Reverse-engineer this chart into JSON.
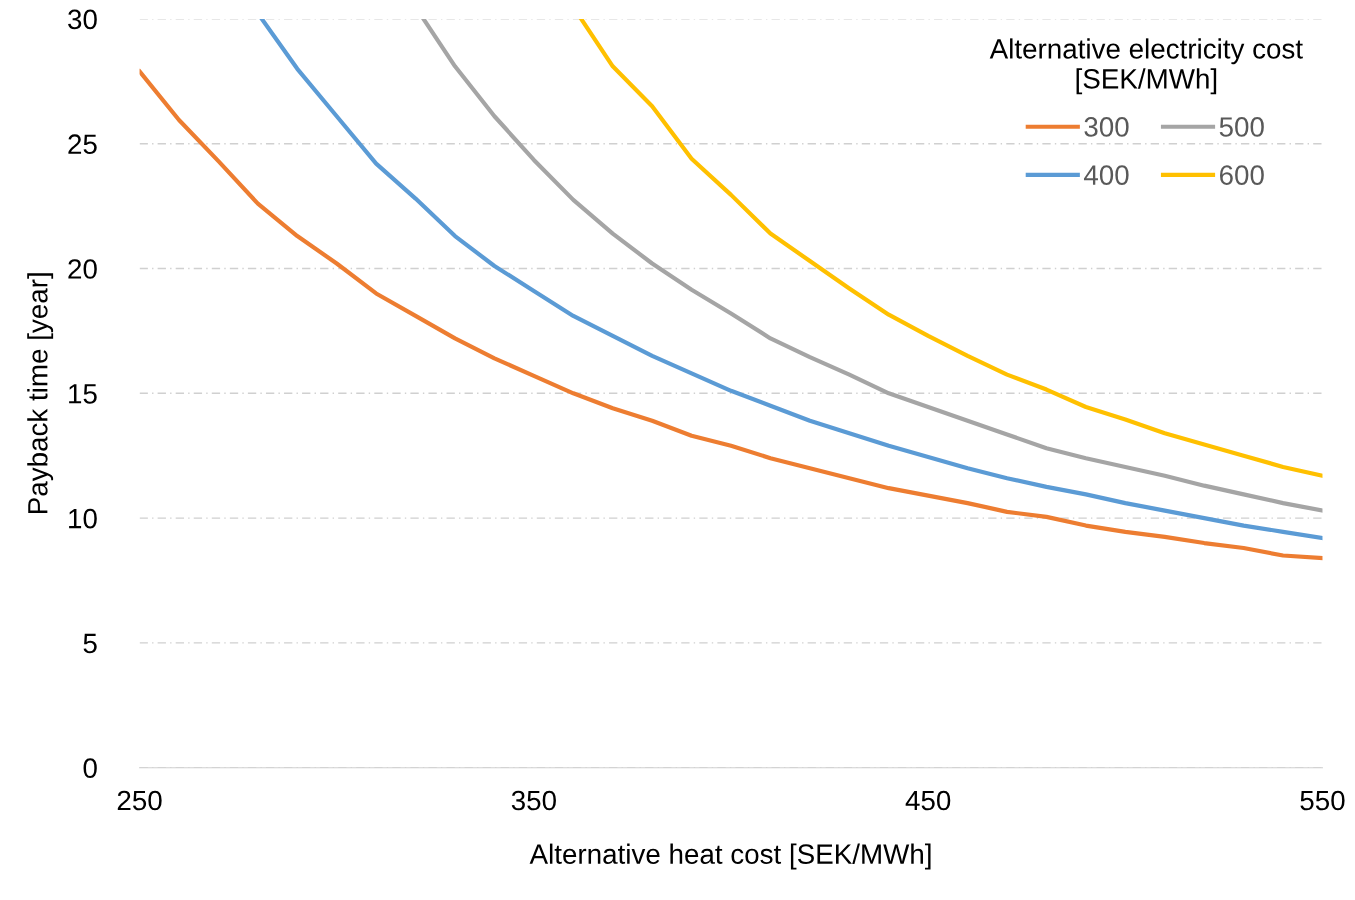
{
  "chart_data": {
    "type": "line",
    "xlabel": "Alternative heat cost [SEK/MWh]",
    "ylabel": "Payback time [year]",
    "legend_title": "Alternative electricity cost\n[SEK/MWh]",
    "legend": "top right",
    "grid": "y",
    "xlim": [
      250,
      550
    ],
    "xticks": [
      250,
      350,
      450,
      550
    ],
    "ylim": [
      0,
      30
    ],
    "yticks": [
      0,
      5,
      10,
      15,
      20,
      25,
      30
    ],
    "series": [
      {
        "name": "300",
        "color": "#ed7d31",
        "x": [
          250,
          260,
          270,
          280,
          290,
          300,
          310,
          320,
          330,
          340,
          350,
          360,
          370,
          380,
          390,
          400,
          410,
          420,
          430,
          440,
          450,
          460,
          470,
          480,
          490,
          500,
          510,
          520,
          530,
          540,
          550
        ],
        "values": [
          27.9,
          25.95,
          24.3,
          22.6,
          21.3,
          20.2,
          19.0,
          18.1,
          17.2,
          16.4,
          15.7,
          15.0,
          14.4,
          13.9,
          13.3,
          12.9,
          12.4,
          12.0,
          11.6,
          11.2,
          10.9,
          10.6,
          10.25,
          10.05,
          9.7,
          9.45,
          9.25,
          9.0,
          8.8,
          8.5,
          8.4
        ]
      },
      {
        "name": "400",
        "color": "#5b9bd5",
        "x": [
          281,
          290,
          300,
          310,
          320,
          330,
          340,
          350,
          360,
          370,
          380,
          390,
          400,
          410,
          420,
          430,
          440,
          450,
          460,
          470,
          480,
          490,
          500,
          510,
          520,
          530,
          540,
          550
        ],
        "values": [
          30,
          28.0,
          26.1,
          24.2,
          22.8,
          21.3,
          20.1,
          19.1,
          18.1,
          17.3,
          16.5,
          15.8,
          15.1,
          14.5,
          13.9,
          13.4,
          12.9,
          12.45,
          12.0,
          11.6,
          11.25,
          10.95,
          10.6,
          10.3,
          10.0,
          9.7,
          9.45,
          9.2
        ]
      },
      {
        "name": "500",
        "color": "#a5a5a5",
        "x": [
          322,
          330,
          340,
          350,
          360,
          370,
          380,
          390,
          400,
          410,
          420,
          430,
          440,
          450,
          460,
          470,
          480,
          490,
          500,
          510,
          520,
          530,
          540,
          550
        ],
        "values": [
          30,
          28.1,
          26.1,
          24.35,
          22.75,
          21.4,
          20.2,
          19.15,
          18.2,
          17.2,
          16.45,
          15.75,
          15.0,
          14.45,
          13.9,
          13.35,
          12.8,
          12.4,
          12.05,
          11.7,
          11.3,
          10.95,
          10.6,
          10.3
        ]
      },
      {
        "name": "600",
        "color": "#ffc000",
        "x": [
          362,
          370,
          380,
          390,
          400,
          410,
          420,
          430,
          440,
          450,
          460,
          470,
          480,
          490,
          500,
          510,
          520,
          530,
          540,
          550
        ],
        "values": [
          30,
          28.1,
          26.5,
          24.4,
          22.95,
          21.4,
          20.3,
          19.2,
          18.15,
          17.3,
          16.5,
          15.75,
          15.15,
          14.45,
          13.95,
          13.4,
          12.95,
          12.5,
          12.05,
          11.7
        ]
      }
    ]
  }
}
